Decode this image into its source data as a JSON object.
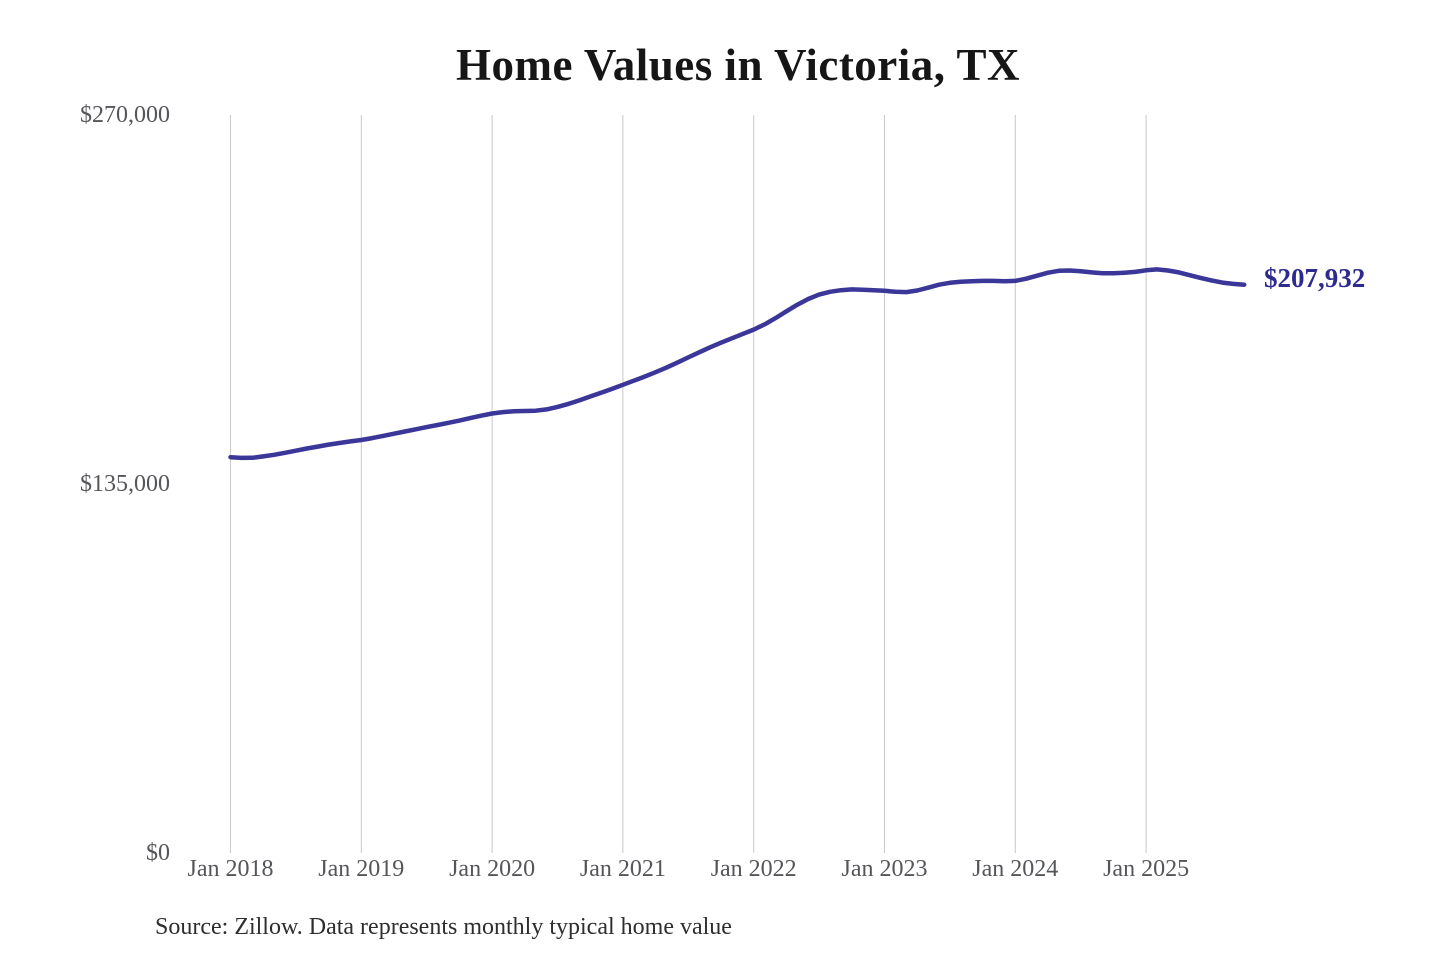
{
  "chart_data": {
    "type": "line",
    "title": "Home Values in Victoria, TX",
    "source_note": "Source: Zillow. Data represents monthly typical home value",
    "end_label": "$207,932",
    "latest_value": 207932,
    "ylabel": "",
    "xlabel": "",
    "ylim": [
      0,
      270000
    ],
    "grid": "vertical-only",
    "legend": "none",
    "x_start": "Jan 2018",
    "x_end": "Oct 2025",
    "frequency": "monthly",
    "y_ticks": [
      {
        "label": "$270,000",
        "value": 270000
      },
      {
        "label": "$135,000",
        "value": 135000
      },
      {
        "label": "$0",
        "value": 0
      }
    ],
    "x_tick_labels": [
      "Jan 2018",
      "Jan 2019",
      "Jan 2020",
      "Jan 2021",
      "Jan 2022",
      "Jan 2023",
      "Jan 2024",
      "Jan 2025"
    ],
    "series": [
      {
        "name": "Monthly typical home value",
        "values": [
          144800,
          144550,
          144600,
          145100,
          145700,
          146400,
          147200,
          148000,
          148700,
          149400,
          150000,
          150600,
          151100,
          151800,
          152600,
          153400,
          154200,
          155000,
          155800,
          156600,
          157400,
          158200,
          159100,
          160000,
          160800,
          161300,
          161600,
          161700,
          161800,
          162300,
          163200,
          164300,
          165600,
          167000,
          168400,
          169800,
          171300,
          172800,
          174300,
          175900,
          177600,
          179400,
          181300,
          183200,
          185000,
          186700,
          188300,
          189900,
          191500,
          193400,
          195700,
          198200,
          200600,
          202700,
          204300,
          205300,
          205900,
          206200,
          206100,
          205900,
          205700,
          205300,
          205200,
          205800,
          206800,
          207900,
          208600,
          209000,
          209200,
          209300,
          209300,
          209200,
          209300,
          210100,
          211200,
          212300,
          213000,
          213100,
          212800,
          212400,
          212100,
          212100,
          212300,
          212600,
          213200,
          213500,
          213100,
          212400,
          211400,
          210400,
          209500,
          208700,
          208200,
          207932
        ]
      }
    ],
    "colors": {
      "line": "#3b3799",
      "end_label": "#2e2b8f",
      "grid": "#c9c9c9",
      "axis_text": "#55565a",
      "title_text": "#161616",
      "source_text": "#2e2e2e",
      "background": "#ffffff"
    }
  }
}
